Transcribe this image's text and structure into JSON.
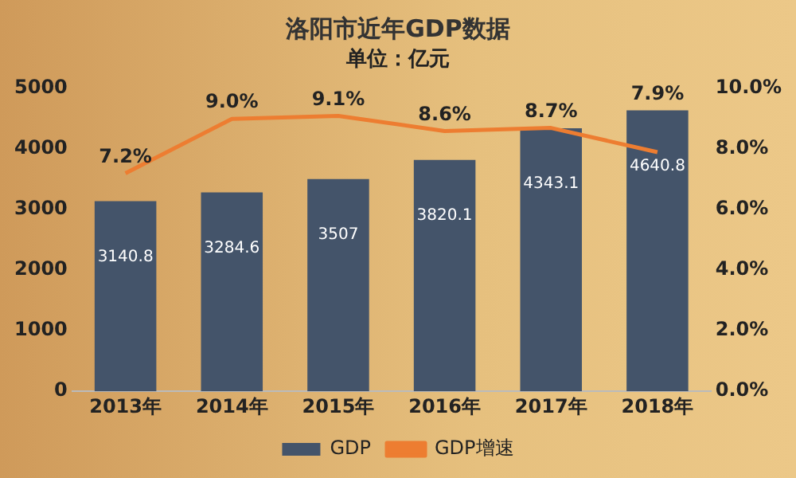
{
  "chart_data": {
    "type": "bar",
    "title": "洛阳市近年GDP数据",
    "subtitle": "单位：亿元",
    "categories": [
      "2013年",
      "2014年",
      "2015年",
      "2016年",
      "2017年",
      "2018年"
    ],
    "series": [
      {
        "name": "GDP",
        "color": "#44546a",
        "values": [
          3140.8,
          3284.6,
          3507,
          3820.1,
          4343.1,
          4640.8
        ],
        "value_labels": [
          "3140.8",
          "3284.6",
          "3507",
          "3820.1",
          "4343.1",
          "4640.8"
        ]
      },
      {
        "name": "GDP增速",
        "type": "line",
        "axis": "y2",
        "color": "#ed7d31",
        "marker": "none",
        "values": [
          7.2,
          9.0,
          9.1,
          8.6,
          8.7,
          7.9
        ],
        "value_labels": [
          "7.2%",
          "9.0%",
          "9.1%",
          "8.6%",
          "8.7%",
          "7.9%"
        ]
      }
    ],
    "ylim": [
      0,
      5000
    ],
    "yticks": [
      0,
      1000,
      2000,
      3000,
      4000,
      5000
    ],
    "y2lim": [
      0,
      10
    ],
    "y2ticks": [
      {
        "value": 0,
        "label": "0.0%"
      },
      {
        "value": 2,
        "label": "2.0%"
      },
      {
        "value": 4,
        "label": "4.0%"
      },
      {
        "value": 6,
        "label": "6.0%"
      },
      {
        "value": 8,
        "label": "8.0%"
      },
      {
        "value": 10,
        "label": "10.0%"
      }
    ],
    "grid": false,
    "legend": "bottom"
  }
}
